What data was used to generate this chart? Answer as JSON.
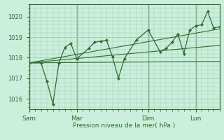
{
  "bg_color": "#cceedd",
  "grid_color": "#99ccaa",
  "line_color": "#2d6e2d",
  "xlabel": "Pression niveau de la mer( hPa )",
  "ylim": [
    1015.5,
    1020.6
  ],
  "yticks": [
    1016,
    1017,
    1018,
    1019,
    1020
  ],
  "day_labels": [
    "Sam",
    "Mar",
    "Dim",
    "Lun"
  ],
  "day_positions": [
    0,
    48,
    120,
    168
  ],
  "xlim": [
    0,
    192
  ],
  "trend1_x": [
    0,
    192
  ],
  "trend1_y": [
    1017.75,
    1017.82
  ],
  "trend2_x": [
    0,
    192
  ],
  "trend2_y": [
    1017.75,
    1019.4
  ],
  "trend3_x": [
    0,
    192
  ],
  "trend3_y": [
    1017.75,
    1018.6
  ],
  "main_x": [
    0,
    12,
    18,
    24,
    30,
    36,
    42,
    48,
    60,
    66,
    72,
    78,
    84,
    90,
    96,
    108,
    120,
    132,
    138,
    144,
    150,
    156,
    162,
    168,
    174,
    180,
    186,
    192
  ],
  "main_y": [
    1017.75,
    1017.75,
    1016.85,
    1015.75,
    1017.75,
    1018.5,
    1018.7,
    1017.95,
    1018.45,
    1018.75,
    1018.8,
    1018.85,
    1018.05,
    1017.0,
    1017.95,
    1018.85,
    1019.35,
    1018.3,
    1018.45,
    1018.75,
    1019.15,
    1018.2,
    1019.35,
    1019.55,
    1019.6,
    1020.25,
    1019.45,
    1019.5
  ]
}
